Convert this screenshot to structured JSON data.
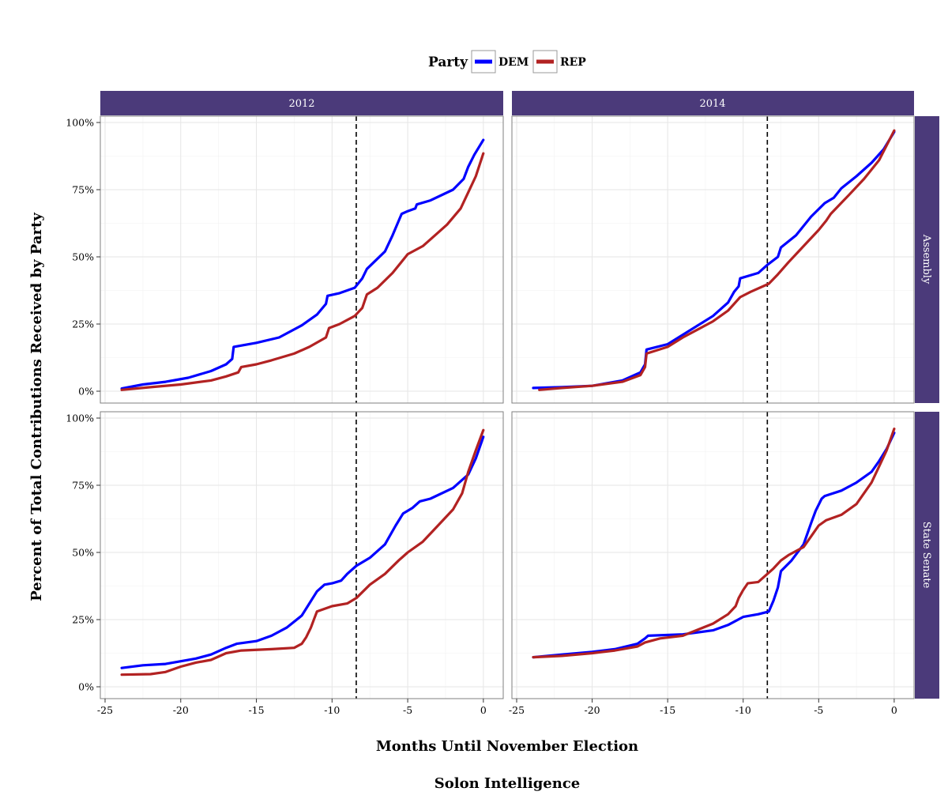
{
  "chart_data": {
    "type": "line",
    "legend": {
      "title": "Party",
      "position": "top"
    },
    "xlabel": "Months Until November Election",
    "ylabel": "Percent of Total Contributions Received by Party",
    "caption": "Solon Intelligence",
    "xlim": [
      -25,
      1
    ],
    "ylim": [
      0,
      1
    ],
    "x_ticks": [
      -25,
      -20,
      -15,
      -10,
      -5,
      0
    ],
    "x_tick_labels": [
      "-25",
      "-20",
      "-15",
      "-10",
      "-5",
      "0"
    ],
    "y_ticks": [
      0,
      0.25,
      0.5,
      0.75,
      1.0
    ],
    "y_tick_labels": [
      "0%",
      "25%",
      "50%",
      "75%",
      "100%"
    ],
    "grid": true,
    "reference_line": {
      "x": -8.4,
      "style": "dashed"
    },
    "columns": [
      "2012",
      "2014"
    ],
    "rows": [
      "Assembly",
      "State Senate"
    ],
    "strip_color": "#4b3a7a",
    "series_styles": [
      {
        "name": "DEM",
        "color": "#0000ff"
      },
      {
        "name": "REP",
        "color": "#b22222"
      }
    ],
    "panels": [
      {
        "column": "2012",
        "row": "Assembly",
        "series": [
          {
            "name": "DEM",
            "points": [
              [
                -23.9,
                0.01
              ],
              [
                -22.5,
                0.025
              ],
              [
                -21,
                0.035
              ],
              [
                -19.5,
                0.05
              ],
              [
                -18,
                0.075
              ],
              [
                -17,
                0.1
              ],
              [
                -16.6,
                0.12
              ],
              [
                -16.5,
                0.165
              ],
              [
                -15,
                0.18
              ],
              [
                -13.5,
                0.2
              ],
              [
                -12,
                0.245
              ],
              [
                -11,
                0.285
              ],
              [
                -10.4,
                0.325
              ],
              [
                -10.3,
                0.355
              ],
              [
                -9.5,
                0.365
              ],
              [
                -8.5,
                0.385
              ],
              [
                -8,
                0.42
              ],
              [
                -7.7,
                0.455
              ],
              [
                -6.5,
                0.52
              ],
              [
                -6,
                0.58
              ],
              [
                -5.4,
                0.66
              ],
              [
                -5,
                0.67
              ],
              [
                -4.5,
                0.68
              ],
              [
                -4.4,
                0.695
              ],
              [
                -3.5,
                0.71
              ],
              [
                -2,
                0.75
              ],
              [
                -1.3,
                0.79
              ],
              [
                -1,
                0.835
              ],
              [
                -0.6,
                0.88
              ],
              [
                0,
                0.935
              ]
            ]
          },
          {
            "name": "REP",
            "points": [
              [
                -23.9,
                0.005
              ],
              [
                -22,
                0.015
              ],
              [
                -20,
                0.025
              ],
              [
                -18,
                0.04
              ],
              [
                -17,
                0.055
              ],
              [
                -16.2,
                0.07
              ],
              [
                -16,
                0.09
              ],
              [
                -15,
                0.1
              ],
              [
                -14,
                0.115
              ],
              [
                -12.5,
                0.14
              ],
              [
                -11.5,
                0.165
              ],
              [
                -10.4,
                0.2
              ],
              [
                -10.2,
                0.235
              ],
              [
                -9.5,
                0.25
              ],
              [
                -8.5,
                0.28
              ],
              [
                -8,
                0.31
              ],
              [
                -7.7,
                0.36
              ],
              [
                -7,
                0.385
              ],
              [
                -6,
                0.44
              ],
              [
                -5,
                0.51
              ],
              [
                -4,
                0.54
              ],
              [
                -3,
                0.59
              ],
              [
                -2.4,
                0.62
              ],
              [
                -1.5,
                0.68
              ],
              [
                -1,
                0.74
              ],
              [
                -0.5,
                0.8
              ],
              [
                0,
                0.885
              ]
            ]
          }
        ]
      },
      {
        "column": "2014",
        "row": "Assembly",
        "series": [
          {
            "name": "DEM",
            "points": [
              [
                -23.9,
                0.012
              ],
              [
                -22,
                0.015
              ],
              [
                -20,
                0.02
              ],
              [
                -18,
                0.04
              ],
              [
                -16.8,
                0.07
              ],
              [
                -16.5,
                0.1
              ],
              [
                -16.4,
                0.155
              ],
              [
                -15,
                0.175
              ],
              [
                -14,
                0.21
              ],
              [
                -13,
                0.245
              ],
              [
                -12,
                0.28
              ],
              [
                -11,
                0.33
              ],
              [
                -10.6,
                0.37
              ],
              [
                -10.3,
                0.39
              ],
              [
                -10.2,
                0.42
              ],
              [
                -9,
                0.44
              ],
              [
                -8.4,
                0.47
              ],
              [
                -7.7,
                0.5
              ],
              [
                -7.5,
                0.535
              ],
              [
                -6.5,
                0.58
              ],
              [
                -5.5,
                0.65
              ],
              [
                -4.6,
                0.7
              ],
              [
                -4,
                0.72
              ],
              [
                -3.5,
                0.755
              ],
              [
                -2.5,
                0.8
              ],
              [
                -1.5,
                0.85
              ],
              [
                -0.7,
                0.9
              ],
              [
                0,
                0.965
              ]
            ]
          },
          {
            "name": "REP",
            "points": [
              [
                -23.5,
                0.005
              ],
              [
                -22,
                0.012
              ],
              [
                -20,
                0.02
              ],
              [
                -18,
                0.035
              ],
              [
                -16.8,
                0.06
              ],
              [
                -16.5,
                0.09
              ],
              [
                -16.4,
                0.14
              ],
              [
                -15,
                0.165
              ],
              [
                -14,
                0.2
              ],
              [
                -13,
                0.23
              ],
              [
                -12,
                0.26
              ],
              [
                -11,
                0.3
              ],
              [
                -10.2,
                0.35
              ],
              [
                -9.5,
                0.37
              ],
              [
                -8.3,
                0.4
              ],
              [
                -7.7,
                0.435
              ],
              [
                -7,
                0.48
              ],
              [
                -6,
                0.54
              ],
              [
                -5,
                0.6
              ],
              [
                -4.5,
                0.635
              ],
              [
                -4.2,
                0.66
              ],
              [
                -3,
                0.73
              ],
              [
                -2,
                0.79
              ],
              [
                -1,
                0.86
              ],
              [
                0,
                0.97
              ]
            ]
          }
        ]
      },
      {
        "column": "2012",
        "row": "State Senate",
        "series": [
          {
            "name": "DEM",
            "points": [
              [
                -23.9,
                0.07
              ],
              [
                -22.5,
                0.08
              ],
              [
                -21,
                0.085
              ],
              [
                -20,
                0.095
              ],
              [
                -19,
                0.105
              ],
              [
                -18,
                0.12
              ],
              [
                -17,
                0.145
              ],
              [
                -16.3,
                0.16
              ],
              [
                -15,
                0.17
              ],
              [
                -14,
                0.19
              ],
              [
                -13,
                0.22
              ],
              [
                -12,
                0.265
              ],
              [
                -11.5,
                0.31
              ],
              [
                -11,
                0.355
              ],
              [
                -10.5,
                0.38
              ],
              [
                -10,
                0.385
              ],
              [
                -9.4,
                0.395
              ],
              [
                -9,
                0.42
              ],
              [
                -8.4,
                0.45
              ],
              [
                -7.5,
                0.48
              ],
              [
                -6.5,
                0.53
              ],
              [
                -5.8,
                0.6
              ],
              [
                -5.3,
                0.645
              ],
              [
                -4.7,
                0.665
              ],
              [
                -4.2,
                0.69
              ],
              [
                -3.5,
                0.7
              ],
              [
                -2,
                0.74
              ],
              [
                -1,
                0.79
              ],
              [
                -0.5,
                0.85
              ],
              [
                0,
                0.93
              ]
            ]
          },
          {
            "name": "REP",
            "points": [
              [
                -23.9,
                0.045
              ],
              [
                -22,
                0.047
              ],
              [
                -21,
                0.055
              ],
              [
                -20,
                0.075
              ],
              [
                -19,
                0.09
              ],
              [
                -18,
                0.1
              ],
              [
                -17,
                0.125
              ],
              [
                -16,
                0.135
              ],
              [
                -14,
                0.14
              ],
              [
                -12.5,
                0.145
              ],
              [
                -12,
                0.16
              ],
              [
                -11.7,
                0.185
              ],
              [
                -11.4,
                0.22
              ],
              [
                -11.2,
                0.25
              ],
              [
                -11,
                0.28
              ],
              [
                -10,
                0.3
              ],
              [
                -9,
                0.31
              ],
              [
                -8.4,
                0.33
              ],
              [
                -7.5,
                0.38
              ],
              [
                -6.5,
                0.42
              ],
              [
                -5.6,
                0.47
              ],
              [
                -5,
                0.5
              ],
              [
                -4,
                0.54
              ],
              [
                -3,
                0.6
              ],
              [
                -2,
                0.66
              ],
              [
                -1.4,
                0.72
              ],
              [
                -1,
                0.8
              ],
              [
                -0.5,
                0.88
              ],
              [
                0,
                0.955
              ]
            ]
          }
        ]
      },
      {
        "column": "2014",
        "row": "State Senate",
        "series": [
          {
            "name": "DEM",
            "points": [
              [
                -23.9,
                0.11
              ],
              [
                -22,
                0.12
              ],
              [
                -20,
                0.13
              ],
              [
                -18.5,
                0.14
              ],
              [
                -17,
                0.16
              ],
              [
                -16.5,
                0.18
              ],
              [
                -16.3,
                0.19
              ],
              [
                -14,
                0.195
              ],
              [
                -12,
                0.21
              ],
              [
                -11,
                0.23
              ],
              [
                -10,
                0.26
              ],
              [
                -9,
                0.27
              ],
              [
                -8.3,
                0.28
              ],
              [
                -8,
                0.32
              ],
              [
                -7.7,
                0.37
              ],
              [
                -7.5,
                0.43
              ],
              [
                -6.8,
                0.47
              ],
              [
                -6,
                0.53
              ],
              [
                -5.5,
                0.61
              ],
              [
                -5.2,
                0.655
              ],
              [
                -4.8,
                0.7
              ],
              [
                -4.6,
                0.71
              ],
              [
                -3.5,
                0.73
              ],
              [
                -2.5,
                0.76
              ],
              [
                -1.5,
                0.8
              ],
              [
                -1,
                0.84
              ],
              [
                -0.5,
                0.885
              ],
              [
                0,
                0.945
              ]
            ]
          },
          {
            "name": "REP",
            "points": [
              [
                -23.9,
                0.11
              ],
              [
                -22,
                0.115
              ],
              [
                -20,
                0.125
              ],
              [
                -18.5,
                0.135
              ],
              [
                -17,
                0.15
              ],
              [
                -16.5,
                0.165
              ],
              [
                -15.5,
                0.18
              ],
              [
                -14,
                0.19
              ],
              [
                -12,
                0.235
              ],
              [
                -11,
                0.27
              ],
              [
                -10.5,
                0.3
              ],
              [
                -10.3,
                0.33
              ],
              [
                -10,
                0.36
              ],
              [
                -9.7,
                0.385
              ],
              [
                -9,
                0.39
              ],
              [
                -8.5,
                0.415
              ],
              [
                -8,
                0.44
              ],
              [
                -7.5,
                0.47
              ],
              [
                -7,
                0.49
              ],
              [
                -6,
                0.52
              ],
              [
                -5.5,
                0.56
              ],
              [
                -5,
                0.6
              ],
              [
                -4.5,
                0.62
              ],
              [
                -3.5,
                0.64
              ],
              [
                -2.5,
                0.68
              ],
              [
                -1.5,
                0.76
              ],
              [
                -1,
                0.82
              ],
              [
                -0.5,
                0.88
              ],
              [
                0,
                0.96
              ]
            ]
          }
        ]
      }
    ]
  }
}
